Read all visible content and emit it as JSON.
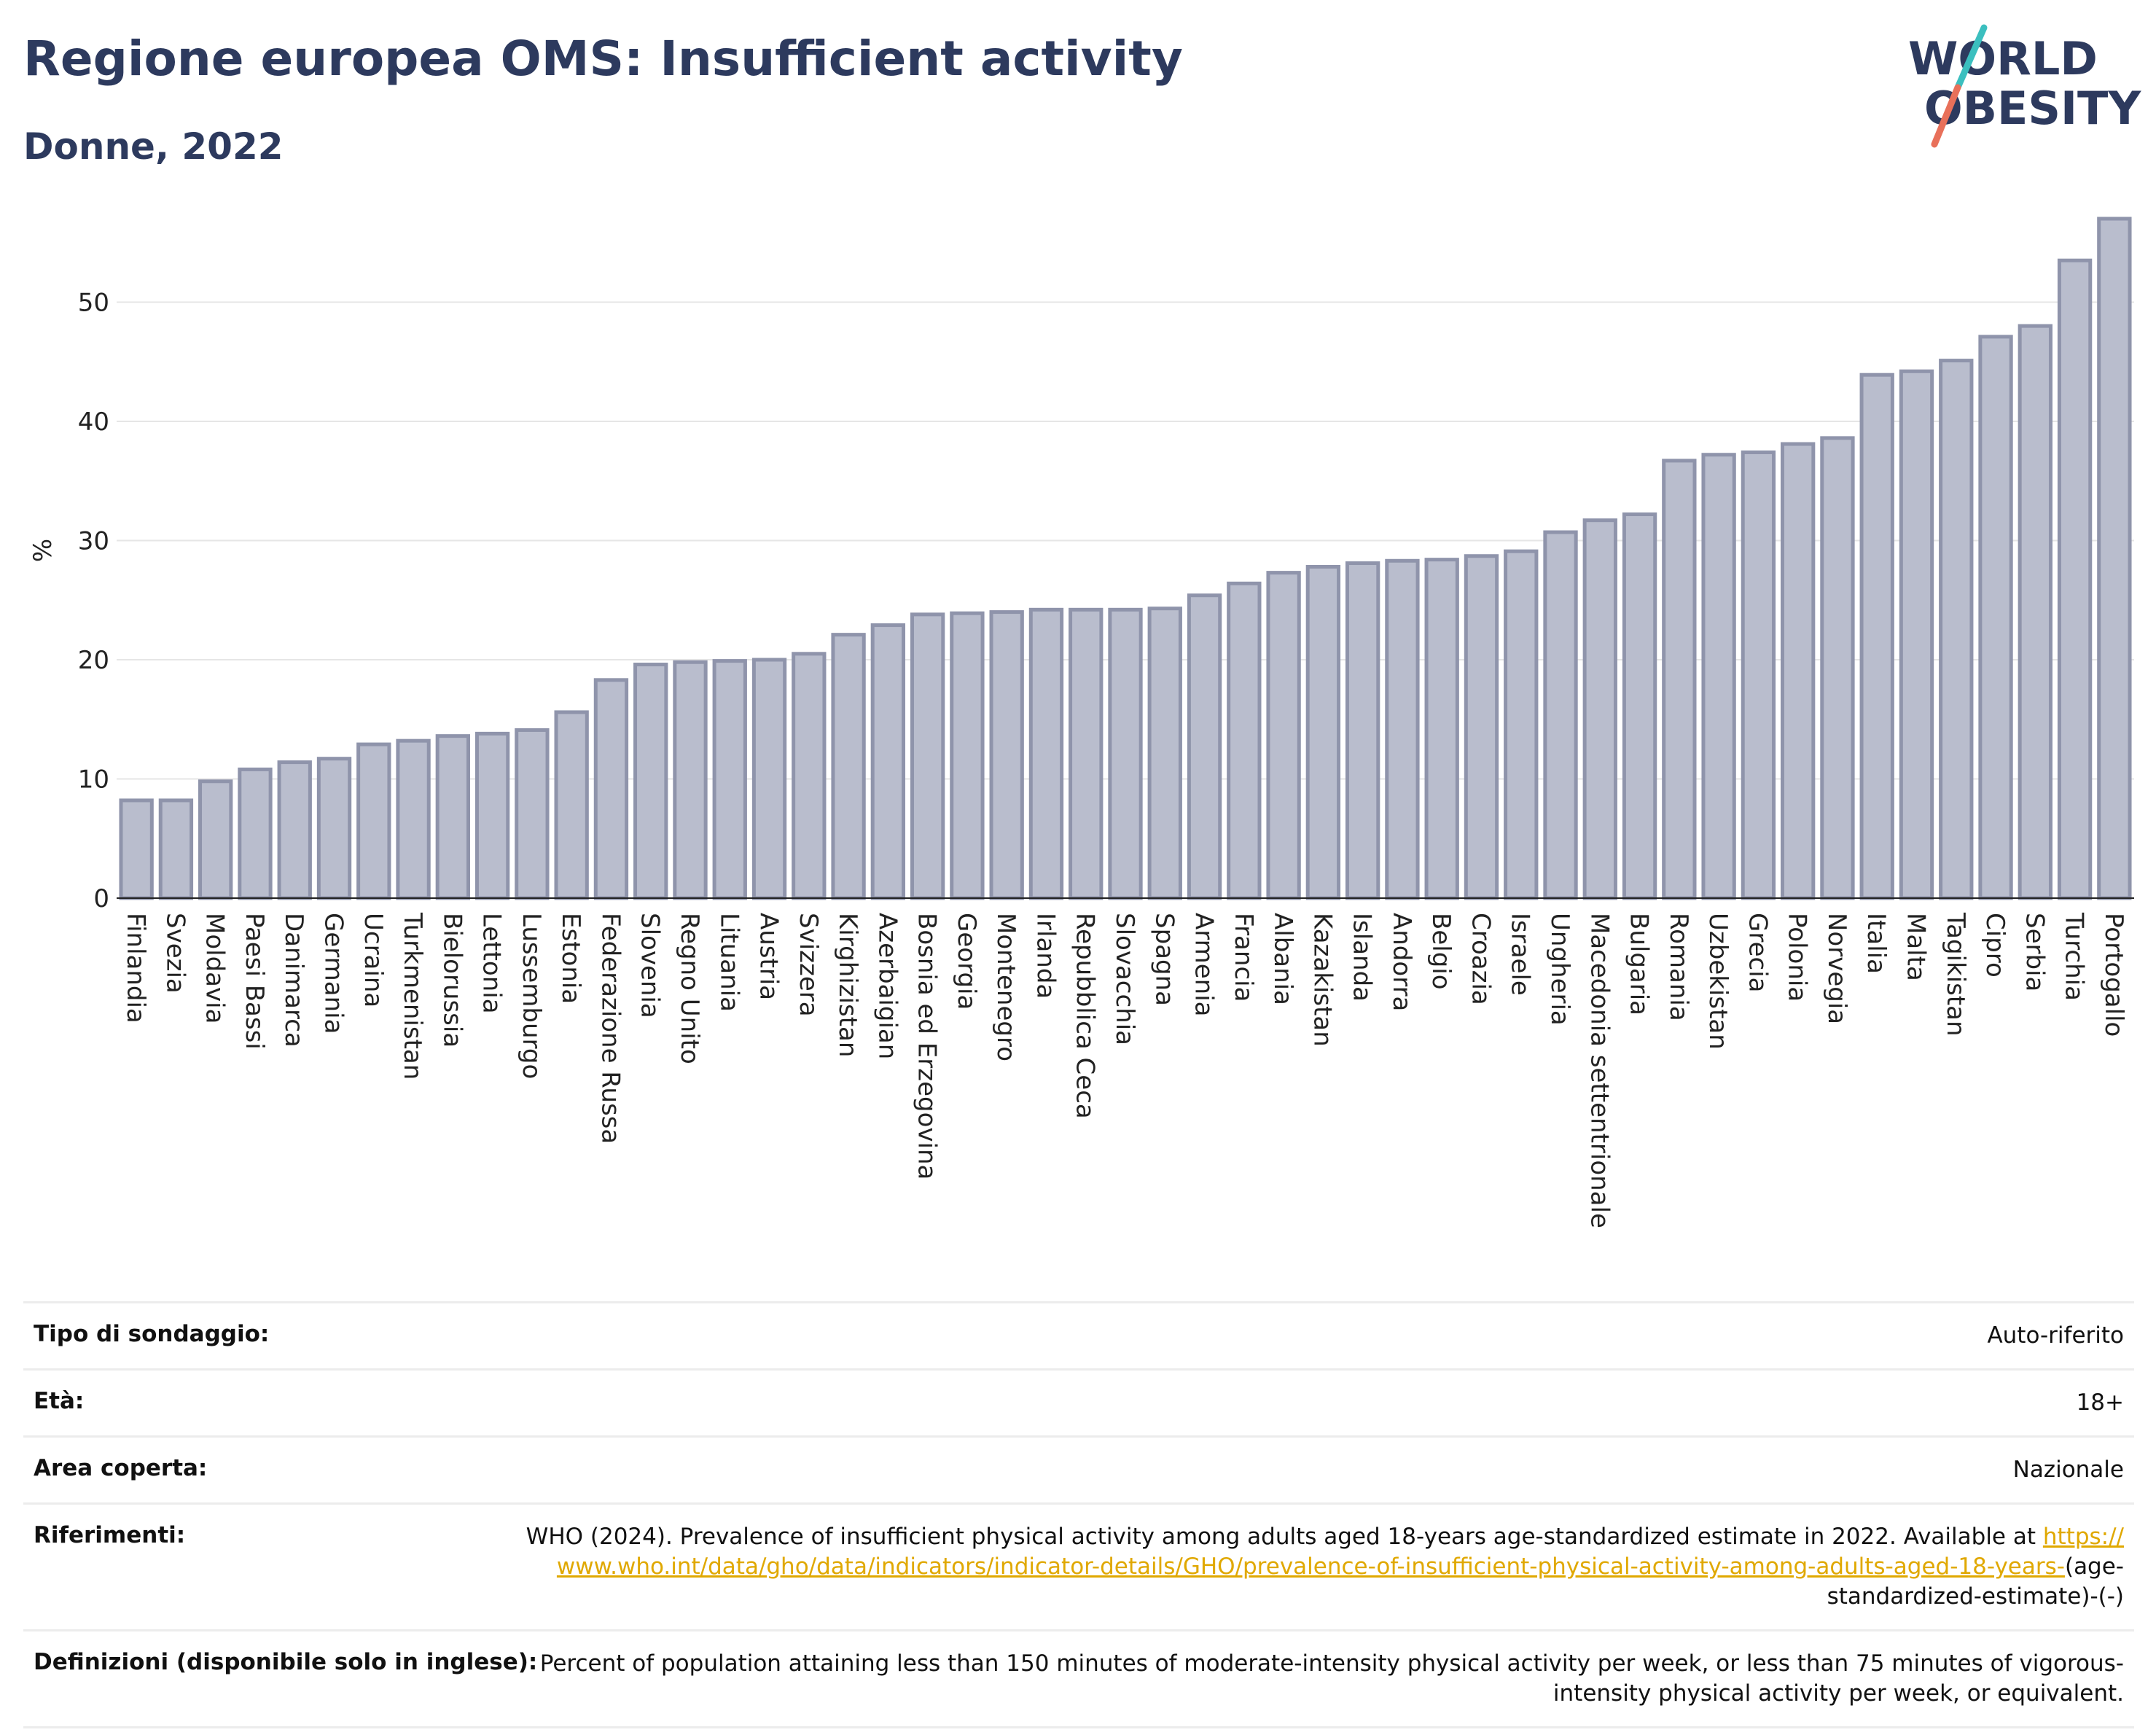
{
  "header": {
    "title": "Regione europea OMS: Insufficient activity",
    "subtitle": "Donne, 2022",
    "logo_line1": "WORLD",
    "logo_line2": "OBESITY"
  },
  "colors": {
    "title": "#2d3a5e",
    "bar_fill": "#b9bdcd",
    "bar_stroke": "#8f94ab",
    "grid": "#e6e6e6",
    "link": "#e0a800",
    "logo_slash_top": "#3bbfbf",
    "logo_slash_bottom": "#e8705a"
  },
  "chart_data": {
    "type": "bar",
    "title": "Regione europea OMS: Insufficient activity",
    "subtitle": "Donne, 2022",
    "ylabel": "%",
    "xlabel": "",
    "ylim": [
      0,
      57
    ],
    "yticks": [
      0,
      10,
      20,
      30,
      40,
      50
    ],
    "grid": true,
    "categories": [
      "Finlandia",
      "Svezia",
      "Moldavia",
      "Paesi Bassi",
      "Danimarca",
      "Germania",
      "Ucraina",
      "Turkmenistan",
      "Bielorussia",
      "Lettonia",
      "Lussemburgo",
      "Estonia",
      "Federazione Russa",
      "Slovenia",
      "Regno Unito",
      "Lituania",
      "Austria",
      "Svizzera",
      "Kirghizistan",
      "Azerbaigian",
      "Bosnia ed Erzegovina",
      "Georgia",
      "Montenegro",
      "Irlanda",
      "Repubblica Ceca",
      "Slovacchia",
      "Spagna",
      "Armenia",
      "Francia",
      "Albania",
      "Kazakistan",
      "Islanda",
      "Andorra",
      "Belgio",
      "Croazia",
      "Israele",
      "Ungheria",
      "Macedonia settentrionale",
      "Bulgaria",
      "Romania",
      "Uzbekistan",
      "Grecia",
      "Polonia",
      "Norvegia",
      "Italia",
      "Malta",
      "Tagikistan",
      "Cipro",
      "Serbia",
      "Turchia",
      "Portogallo"
    ],
    "values": [
      8.2,
      8.2,
      9.8,
      10.8,
      11.4,
      11.7,
      12.9,
      13.2,
      13.6,
      13.8,
      14.1,
      15.6,
      18.3,
      19.6,
      19.8,
      19.9,
      20.0,
      20.5,
      22.1,
      22.9,
      23.8,
      23.9,
      24.0,
      24.2,
      24.2,
      24.2,
      24.3,
      25.4,
      26.4,
      27.3,
      27.8,
      28.1,
      28.3,
      28.4,
      28.7,
      29.1,
      30.7,
      31.7,
      32.2,
      36.7,
      37.2,
      37.4,
      38.1,
      38.6,
      43.9,
      44.2,
      45.1,
      47.1,
      48.0,
      53.5,
      57.0
    ]
  },
  "info": {
    "rows": [
      {
        "label": "Tipo di sondaggio:",
        "value": "Auto-riferito"
      },
      {
        "label": "Età:",
        "value": "18+"
      },
      {
        "label": "Area coperta:",
        "value": "Nazionale"
      }
    ],
    "references_label": "Riferimenti:",
    "references_text": "WHO (2024). Prevalence of insufficient physical activity among adults aged 18-years age-standardized estimate in 2022. Available at ",
    "references_link": "https://www.who.int/data/gho/data/indicators/indicator-details/GHO/prevalence-of-insufficient-physical-activity-among-adults-aged-18-years-",
    "references_tail": "(age-standardized-estimate)-(-)",
    "definitions_label": "Definizioni (disponibile solo in inglese):",
    "definitions_text": "Percent of population attaining less than 150 minutes of moderate-intensity physical activity per week, or less than 75 minutes of vigorous-intensity physical activity per week, or equivalent."
  }
}
